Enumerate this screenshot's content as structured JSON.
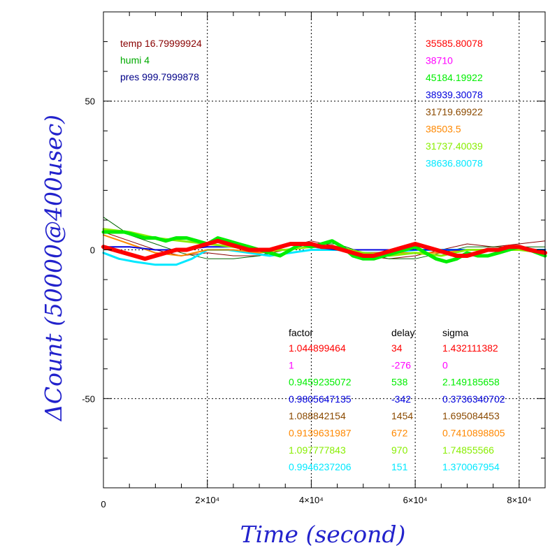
{
  "chart_data": {
    "type": "line",
    "xlabel": "Time (second)",
    "ylabel": "ΔCount (50000@400usec)",
    "xlim": [
      0,
      85000
    ],
    "ylim": [
      -80,
      80
    ],
    "x_ticks": [
      {
        "value": 0,
        "label": "0"
      },
      {
        "value": 20000,
        "label": "2×10⁴"
      },
      {
        "value": 40000,
        "label": "4×10⁴"
      },
      {
        "value": 60000,
        "label": "6×10⁴"
      },
      {
        "value": 80000,
        "label": "8×10⁴"
      }
    ],
    "y_ticks": [
      {
        "value": 50,
        "label": "50"
      },
      {
        "value": 0,
        "label": "0"
      },
      {
        "value": -50,
        "label": "-50"
      }
    ],
    "grid": true,
    "env_info": [
      {
        "text": "temp 16.79999924",
        "color": "#880000"
      },
      {
        "text": "humi 4",
        "color": "#00aa00"
      },
      {
        "text": "pres 999.7999878",
        "color": "#000088"
      }
    ],
    "averages": [
      {
        "text": "35585.80078",
        "color": "#ff0000"
      },
      {
        "text": "38710",
        "color": "#ff00ff"
      },
      {
        "text": "45184.19922",
        "color": "#00ee00"
      },
      {
        "text": "38939.30078",
        "color": "#0000dd"
      },
      {
        "text": "31719.69922",
        "color": "#8b4a00"
      },
      {
        "text": "38503.5",
        "color": "#ff8800"
      },
      {
        "text": "31737.40039",
        "color": "#88ee00"
      },
      {
        "text": "38636.80078",
        "color": "#00e8ff"
      }
    ],
    "table": {
      "headers": [
        "factor",
        "delay",
        "sigma"
      ],
      "rows": [
        {
          "factor": "1.044899464",
          "delay": "34",
          "sigma": "1.432111382",
          "color": "#ff0000"
        },
        {
          "factor": "1",
          "delay": "-276",
          "sigma": "0",
          "color": "#ff00ff"
        },
        {
          "factor": "0.9459235072",
          "delay": "538",
          "sigma": "2.149185658",
          "color": "#00ee00"
        },
        {
          "factor": "0.9805647135",
          "delay": "-342",
          "sigma": "0.3736340702",
          "color": "#0000dd"
        },
        {
          "factor": "1.088842154",
          "delay": "1454",
          "sigma": "1.695084453",
          "color": "#8b4a00"
        },
        {
          "factor": "0.9139631987",
          "delay": "672",
          "sigma": "0.7410898805",
          "color": "#ff8800"
        },
        {
          "factor": "1.097777843",
          "delay": "970",
          "sigma": "1.74855566",
          "color": "#88ee00"
        },
        {
          "factor": "0.9946237206",
          "delay": "151",
          "sigma": "1.370067954",
          "color": "#00e8ff"
        }
      ]
    },
    "series": [
      {
        "color": "#880000",
        "width": 1,
        "x": [
          0,
          5000,
          10000,
          15000,
          20000,
          25000,
          30000,
          35000,
          40000,
          45000,
          50000,
          55000,
          60000,
          65000,
          70000,
          75000,
          80000,
          85000
        ],
        "y": [
          6,
          3,
          0,
          -2,
          -1,
          -2,
          -2,
          1,
          3,
          1,
          -2,
          -3,
          -2,
          0,
          2,
          1,
          2,
          3
        ]
      },
      {
        "color": "#006600",
        "width": 1,
        "x": [
          0,
          5000,
          10000,
          15000,
          20000,
          25000,
          30000,
          35000,
          40000,
          45000,
          50000,
          55000,
          60000,
          65000,
          70000,
          75000,
          80000,
          85000
        ],
        "y": [
          11,
          5,
          2,
          -1,
          -3,
          -3,
          -2,
          0,
          2,
          2,
          -1,
          -3,
          -3,
          -1,
          1,
          1,
          1,
          1
        ]
      },
      {
        "color": "#00e8ff",
        "width": 3,
        "x": [
          0,
          3000,
          6000,
          10000,
          14000,
          17000,
          20000,
          24000,
          28000,
          32000,
          36000,
          40000,
          45000,
          50000,
          55000,
          60000,
          65000,
          70000,
          75000,
          80000,
          85000
        ],
        "y": [
          -1,
          -3,
          -4,
          -5,
          -5,
          -3,
          0,
          0,
          -1,
          -2,
          -1,
          0,
          0,
          -1,
          -1,
          0,
          0,
          0,
          0,
          0,
          0
        ]
      },
      {
        "color": "#ff8800",
        "width": 2,
        "x": [
          0,
          5000,
          10000,
          15000,
          20000,
          25000,
          30000,
          35000,
          40000,
          45000,
          50000,
          55000,
          60000,
          65000,
          70000,
          75000,
          80000,
          85000
        ],
        "y": [
          5,
          2,
          -1,
          -2,
          0,
          0,
          -1,
          0,
          1,
          1,
          -1,
          -1,
          -1,
          -1,
          0,
          0,
          0,
          0
        ]
      },
      {
        "color": "#0000dd",
        "width": 2,
        "x": [
          0,
          5000,
          10000,
          15000,
          20000,
          25000,
          30000,
          35000,
          40000,
          45000,
          50000,
          55000,
          60000,
          65000,
          70000,
          75000,
          80000,
          85000
        ],
        "y": [
          1,
          1,
          0,
          0,
          1,
          1,
          0,
          0,
          1,
          0,
          0,
          0,
          0,
          0,
          0,
          0,
          0,
          0
        ]
      },
      {
        "color": "#88ee00",
        "width": 3,
        "x": [
          0,
          5000,
          10000,
          15000,
          20000,
          25000,
          30000,
          35000,
          40000,
          45000,
          50000,
          55000,
          60000,
          65000,
          70000,
          75000,
          80000,
          85000
        ],
        "y": [
          7,
          6,
          4,
          3,
          2,
          1,
          0,
          0,
          1,
          1,
          -1,
          -2,
          -1,
          -2,
          0,
          0,
          0,
          -1
        ]
      },
      {
        "color": "#00ee00",
        "width": 5,
        "x": [
          0,
          2000,
          4000,
          6000,
          8000,
          10000,
          12000,
          14000,
          16000,
          18000,
          20000,
          22000,
          24000,
          26000,
          28000,
          30000,
          32000,
          34000,
          36000,
          38000,
          40000,
          42000,
          44000,
          46000,
          48000,
          50000,
          52000,
          54000,
          56000,
          58000,
          60000,
          62000,
          64000,
          66000,
          68000,
          70000,
          72000,
          74000,
          76000,
          78000,
          80000,
          82000,
          85000
        ],
        "y": [
          6,
          6,
          6,
          5,
          4,
          4,
          3,
          4,
          4,
          3,
          2,
          4,
          3,
          2,
          1,
          0,
          -1,
          -2,
          0,
          2,
          1,
          2,
          3,
          1,
          -2,
          -3,
          -3,
          -2,
          -1,
          0,
          1,
          -1,
          -3,
          -4,
          -3,
          -1,
          -2,
          -2,
          -1,
          0,
          1,
          0,
          -2
        ]
      },
      {
        "color": "#ff0000",
        "width": 6,
        "x": [
          0,
          2000,
          4000,
          6000,
          8000,
          10000,
          12000,
          14000,
          16000,
          18000,
          20000,
          22000,
          24000,
          26000,
          28000,
          30000,
          32000,
          34000,
          36000,
          38000,
          40000,
          42000,
          44000,
          46000,
          48000,
          50000,
          52000,
          54000,
          56000,
          58000,
          60000,
          62000,
          64000,
          66000,
          68000,
          70000,
          72000,
          74000,
          76000,
          78000,
          80000,
          82000,
          85000
        ],
        "y": [
          1,
          0,
          -1,
          -2,
          -3,
          -2,
          -1,
          0,
          0,
          1,
          2,
          3,
          2,
          1,
          0,
          0,
          0,
          1,
          2,
          2,
          2,
          1,
          1,
          0,
          -1,
          -2,
          -2,
          -1,
          0,
          1,
          2,
          1,
          0,
          -1,
          -2,
          -2,
          -1,
          0,
          0,
          1,
          1,
          0,
          -1
        ]
      }
    ]
  }
}
